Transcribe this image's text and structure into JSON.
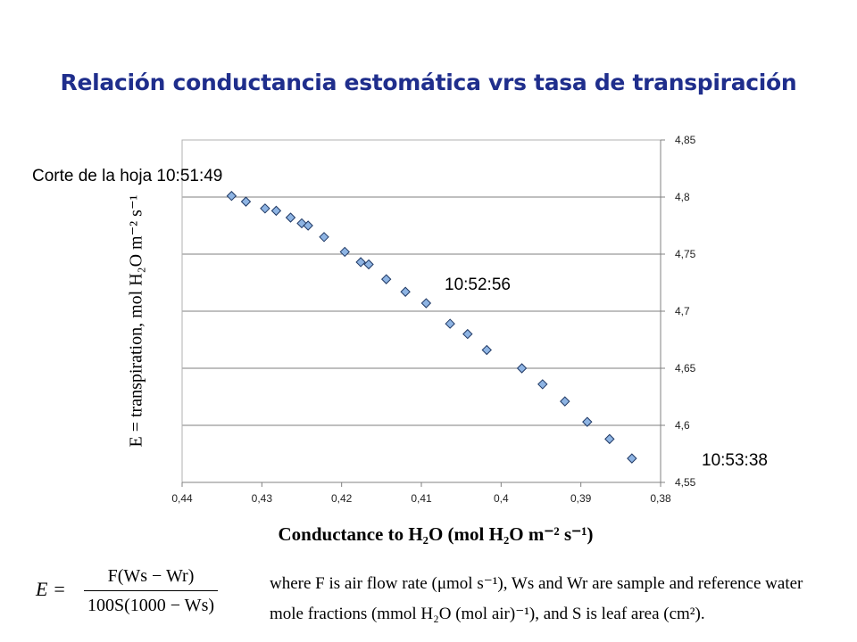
{
  "title": "Relación conductancia estomática vrs tasa de transpiración",
  "annotations": {
    "start": "Corte de la hoja  10:51:49",
    "mid": "10:52:56",
    "end": "10:53:38"
  },
  "axis_labels": {
    "y": "E = transpiration, mol H₂O m⁻² s⁻¹",
    "x": "Conductance to H₂O (mol H₂O m⁻² s⁻¹)"
  },
  "formula": {
    "lhs": "E  =",
    "numerator": "F(Ws − Wr)",
    "denominator": "100S(1000 − Ws)",
    "description_line1": "where F is air flow rate (μmol s⁻¹), Ws and Wr are sample and reference water",
    "description_line2": "mole fractions (mmol H₂O  (mol air)⁻¹), and S is leaf area (cm²)."
  },
  "colors": {
    "title": "#1f2e8c",
    "marker_fill": "#8eb4e3",
    "marker_stroke": "#1f3864",
    "gridline": "#7f7f7f"
  },
  "chart_data": {
    "type": "scatter",
    "title": "Relación conductancia estomática vrs tasa de transpiración",
    "xlabel": "Conductance to H₂O (mol H₂O m⁻² s⁻¹)",
    "ylabel": "E = transpiration, mol H₂O m⁻² s⁻¹",
    "x_reversed": true,
    "xlim": [
      0.38,
      0.44
    ],
    "ylim": [
      4.55,
      4.85
    ],
    "y_axis_position": "right",
    "x_tick_labels": [
      "0,44",
      "0,43",
      "0,42",
      "0,41",
      "0,4",
      "0,39",
      "0,38"
    ],
    "x_ticks": [
      0.44,
      0.43,
      0.42,
      0.41,
      0.4,
      0.39,
      0.38
    ],
    "y_tick_labels": [
      "4,55",
      "4,6",
      "4,65",
      "4,7",
      "4,75",
      "4,8",
      "4,85"
    ],
    "y_ticks": [
      4.55,
      4.6,
      4.65,
      4.7,
      4.75,
      4.8,
      4.85
    ],
    "grid": "horizontal",
    "legend": "none",
    "marker": "diamond",
    "x": [
      0.4338,
      0.432,
      0.4296,
      0.4282,
      0.4264,
      0.425,
      0.4242,
      0.4222,
      0.4196,
      0.4176,
      0.4166,
      0.4144,
      0.412,
      0.4094,
      0.4064,
      0.4042,
      0.4018,
      0.3974,
      0.3948,
      0.392,
      0.3892,
      0.3864,
      0.3836
    ],
    "y": [
      4.801,
      4.796,
      4.79,
      4.788,
      4.782,
      4.777,
      4.775,
      4.765,
      4.752,
      4.743,
      4.741,
      4.728,
      4.717,
      4.707,
      4.689,
      4.68,
      4.666,
      4.65,
      4.636,
      4.621,
      4.603,
      4.588,
      4.571
    ]
  }
}
